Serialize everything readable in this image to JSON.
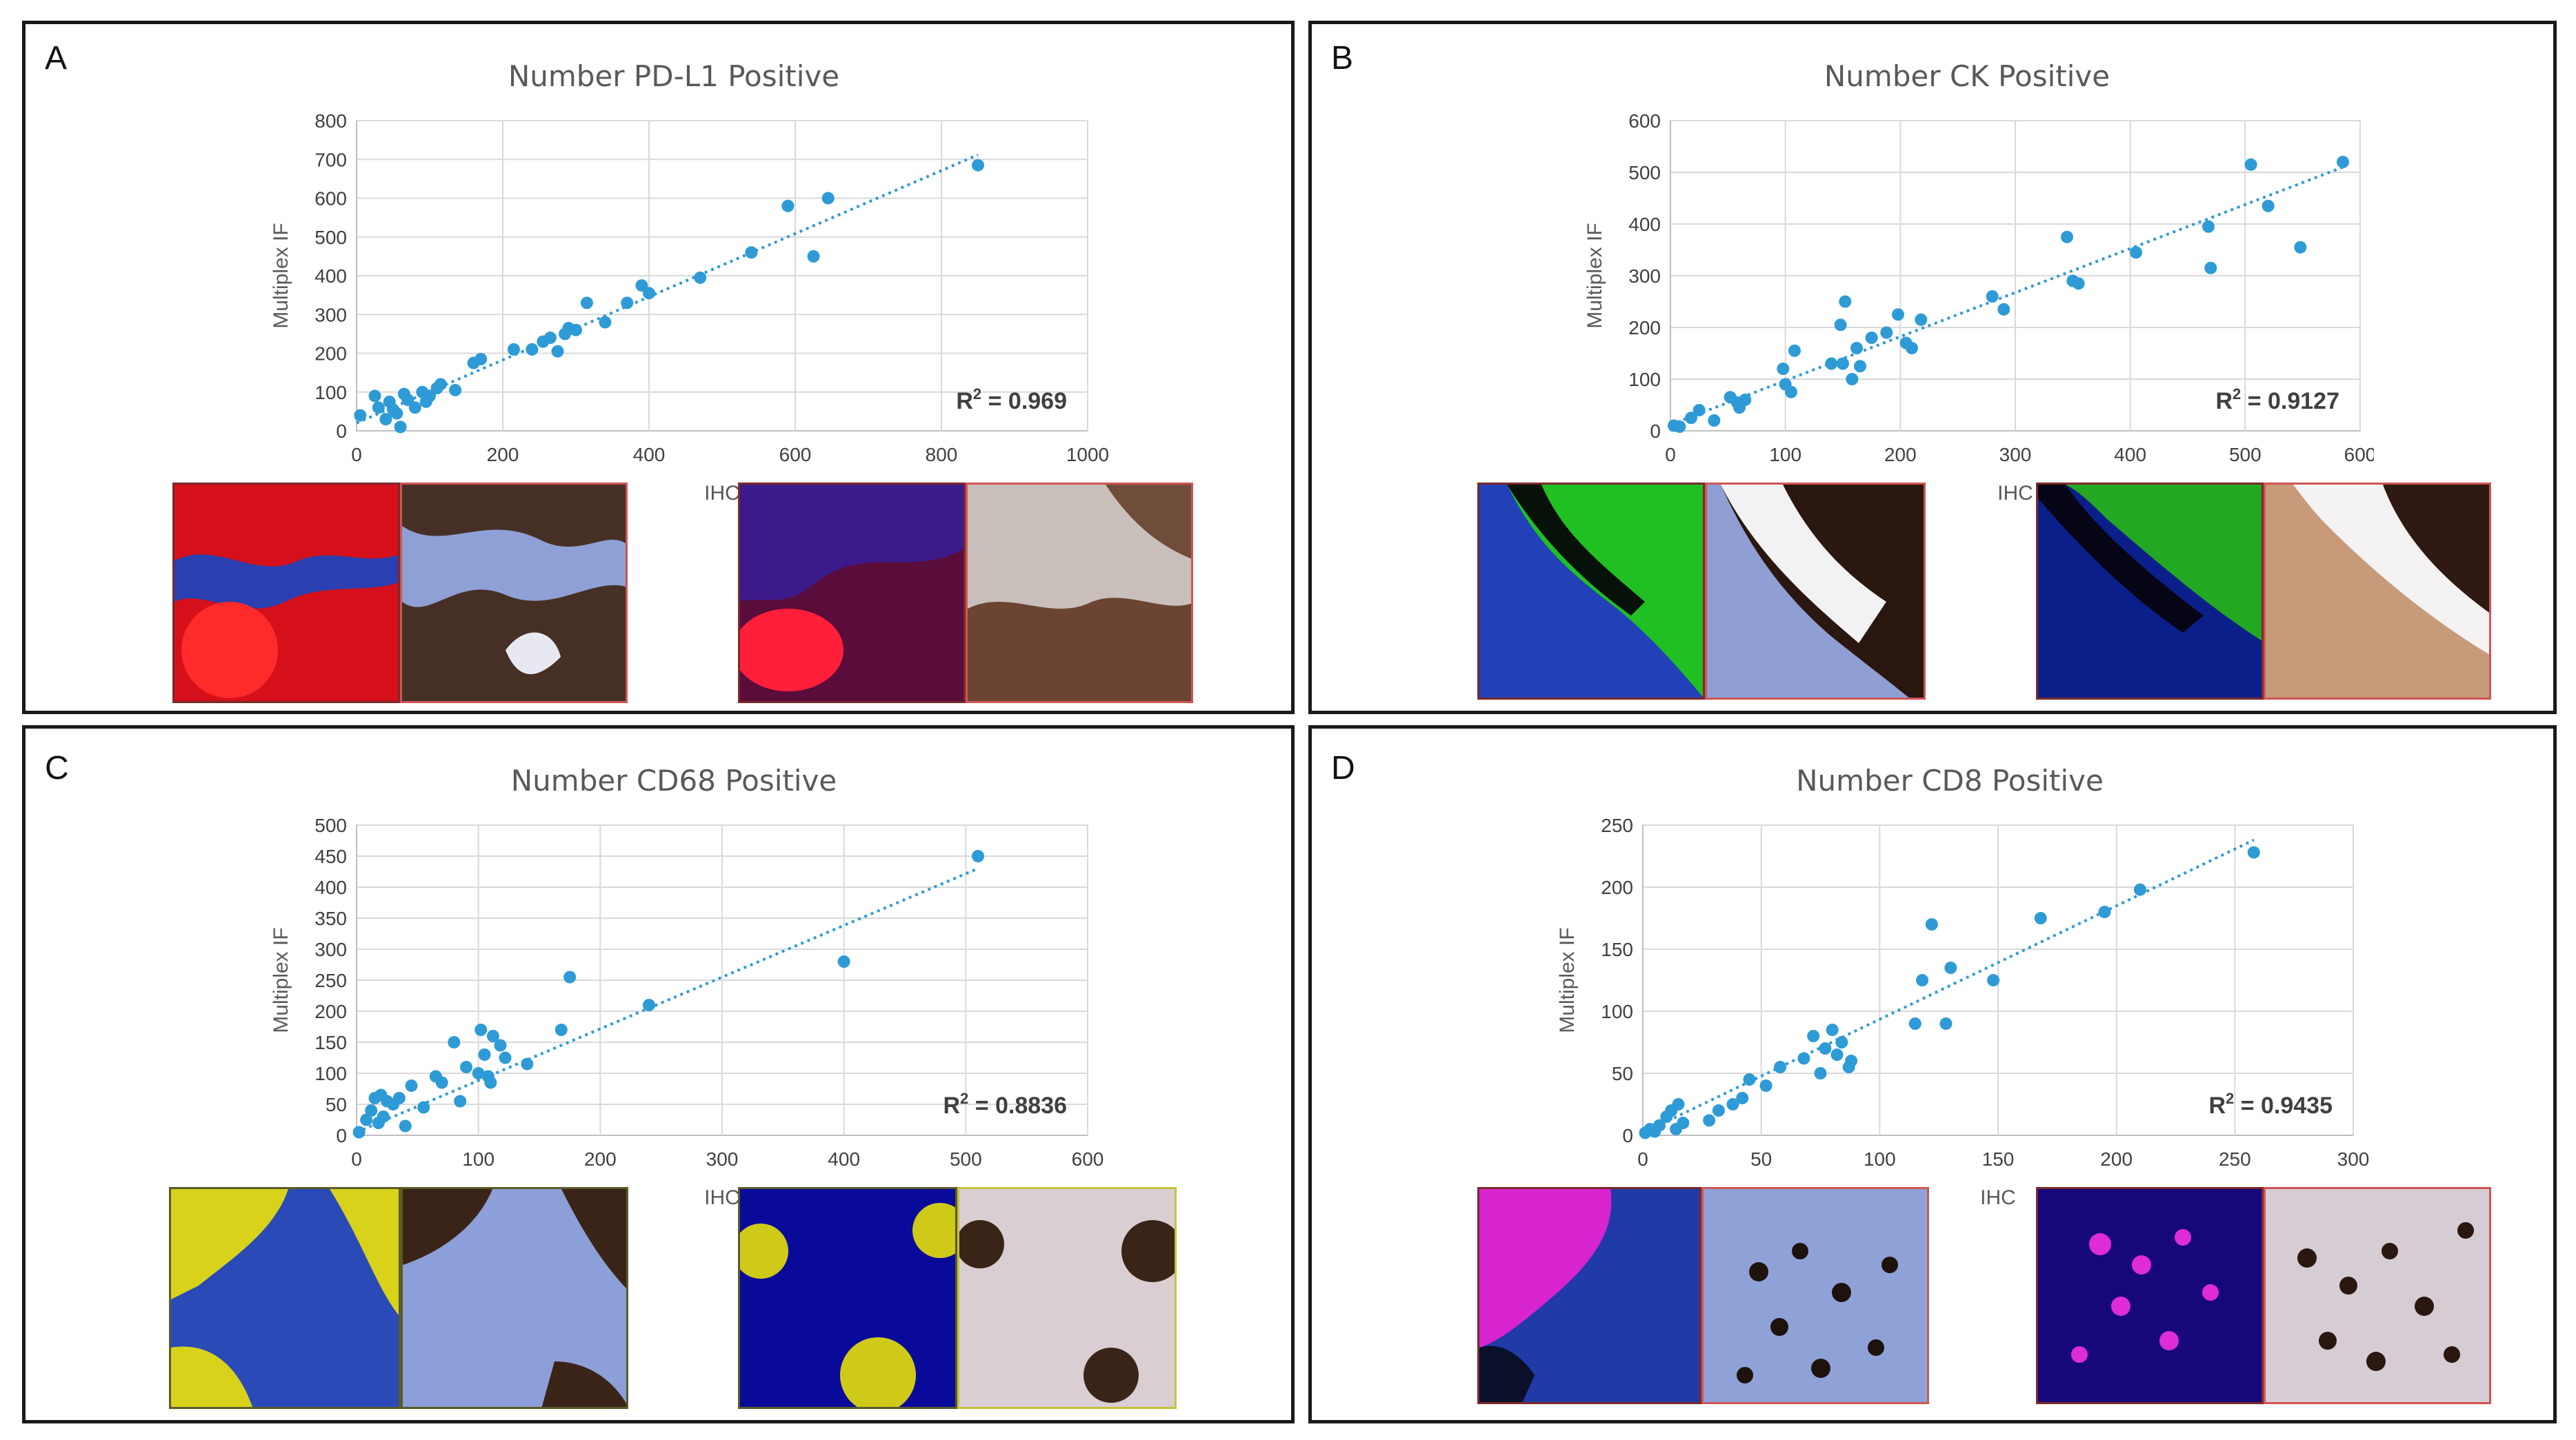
{
  "colors": {
    "accent": "#2e9bd6",
    "red_if": "#e0111a",
    "green_if": "#1fb81f",
    "yellow_if": "#d9d400",
    "magenta_if": "#e021d8",
    "dapi_blue": "#1d3fbf",
    "ihc_brown": "#3b2418"
  },
  "chart_data": [
    {
      "panel": "A",
      "type": "scatter",
      "title": "Number PD-L1 Positive",
      "xlabel": "IHC",
      "ylabel": "Multiplex IF",
      "xlim": [
        0,
        1000
      ],
      "ylim": [
        0,
        800
      ],
      "xticks": [
        0,
        200,
        400,
        600,
        800,
        1000
      ],
      "yticks": [
        0,
        100,
        200,
        300,
        400,
        500,
        600,
        700,
        800
      ],
      "r2_prefix": "R",
      "r2_sup": "2",
      "r2_value": " = 0.969",
      "trend": {
        "x": [
          0,
          850
        ],
        "y": [
          20,
          712
        ]
      },
      "x": [
        5,
        25,
        30,
        40,
        45,
        50,
        55,
        60,
        65,
        70,
        80,
        90,
        95,
        100,
        110,
        115,
        135,
        160,
        170,
        215,
        240,
        255,
        265,
        275,
        285,
        290,
        300,
        315,
        340,
        370,
        390,
        400,
        470,
        540,
        590,
        625,
        645,
        850
      ],
      "y": [
        40,
        90,
        60,
        30,
        75,
        55,
        45,
        10,
        95,
        80,
        60,
        100,
        75,
        90,
        110,
        120,
        105,
        175,
        185,
        210,
        210,
        230,
        240,
        205,
        250,
        265,
        260,
        330,
        280,
        330,
        375,
        355,
        395,
        460,
        580,
        450,
        600,
        685
      ]
    },
    {
      "panel": "B",
      "type": "scatter",
      "title": "Number CK Positive",
      "xlabel": "IHC",
      "ylabel": "Multiplex IF",
      "xlim": [
        0,
        600
      ],
      "ylim": [
        0,
        600
      ],
      "xticks": [
        0,
        100,
        200,
        300,
        400,
        500,
        600
      ],
      "yticks": [
        0,
        100,
        200,
        300,
        400,
        500,
        600
      ],
      "r2_prefix": "R",
      "r2_sup": "2",
      "r2_value": " = 0.9127",
      "trend": {
        "x": [
          0,
          585
        ],
        "y": [
          12,
          510
        ]
      },
      "x": [
        3,
        8,
        18,
        25,
        38,
        52,
        58,
        60,
        65,
        98,
        100,
        105,
        108,
        140,
        148,
        150,
        152,
        158,
        162,
        165,
        175,
        188,
        198,
        205,
        210,
        218,
        280,
        290,
        345,
        350,
        355,
        405,
        468,
        470,
        505,
        520,
        548,
        585
      ],
      "y": [
        10,
        8,
        25,
        40,
        20,
        65,
        55,
        45,
        60,
        120,
        90,
        75,
        155,
        130,
        205,
        130,
        250,
        100,
        160,
        125,
        180,
        190,
        225,
        170,
        160,
        215,
        260,
        235,
        375,
        290,
        285,
        345,
        395,
        315,
        515,
        435,
        355,
        520
      ]
    },
    {
      "panel": "C",
      "type": "scatter",
      "title": "Number CD68 Positive",
      "xlabel": "IHC",
      "ylabel": "Multiplex IF",
      "xlim": [
        0,
        600
      ],
      "ylim": [
        0,
        500
      ],
      "xticks": [
        0,
        100,
        200,
        300,
        400,
        500,
        600
      ],
      "yticks": [
        0,
        50,
        100,
        150,
        200,
        250,
        300,
        350,
        400,
        450,
        500
      ],
      "r2_prefix": "R",
      "r2_sup": "2",
      "r2_value": " = 0.8836",
      "trend": {
        "x": [
          0,
          510
        ],
        "y": [
          5,
          430
        ]
      },
      "x": [
        2,
        8,
        12,
        15,
        18,
        20,
        22,
        25,
        30,
        35,
        40,
        45,
        55,
        65,
        70,
        80,
        85,
        90,
        100,
        102,
        105,
        108,
        110,
        112,
        118,
        122,
        140,
        168,
        175,
        240,
        400,
        510
      ],
      "y": [
        5,
        25,
        40,
        60,
        20,
        65,
        30,
        55,
        50,
        60,
        15,
        80,
        45,
        95,
        85,
        150,
        55,
        110,
        100,
        170,
        130,
        95,
        85,
        160,
        145,
        125,
        115,
        170,
        255,
        210,
        280,
        450
      ]
    },
    {
      "panel": "D",
      "type": "scatter",
      "title": "Number CD8 Positive",
      "xlabel": "IHC",
      "ylabel": "Multiplex IF",
      "xlim": [
        0,
        300
      ],
      "ylim": [
        0,
        250
      ],
      "xticks": [
        0,
        50,
        100,
        150,
        200,
        250,
        300
      ],
      "yticks": [
        0,
        50,
        100,
        150,
        200,
        250
      ],
      "r2_prefix": "R",
      "r2_sup": "2",
      "r2_value": " = 0.9435",
      "trend": {
        "x": [
          0,
          258
        ],
        "y": [
          2,
          238
        ]
      },
      "x": [
        1,
        3,
        5,
        7,
        10,
        12,
        14,
        15,
        17,
        28,
        32,
        38,
        42,
        45,
        52,
        58,
        68,
        72,
        75,
        77,
        80,
        82,
        84,
        87,
        88,
        115,
        118,
        122,
        128,
        130,
        148,
        168,
        195,
        210,
        258
      ],
      "y": [
        2,
        5,
        3,
        8,
        15,
        20,
        5,
        25,
        10,
        12,
        20,
        25,
        30,
        45,
        40,
        55,
        62,
        80,
        50,
        70,
        85,
        65,
        75,
        55,
        60,
        90,
        125,
        170,
        90,
        135,
        125,
        175,
        180,
        198,
        228
      ]
    }
  ]
}
